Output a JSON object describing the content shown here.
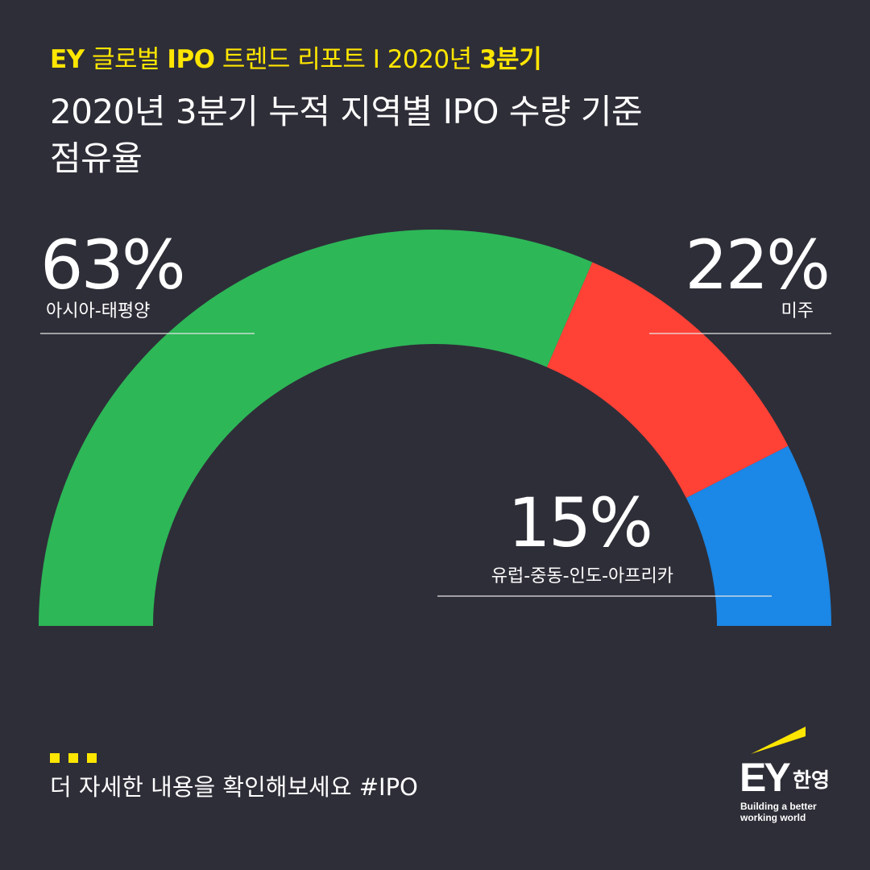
{
  "header": {
    "kicker_brand": "EY",
    "kicker_mid": "글로벌",
    "kicker_ipo": "IPO",
    "kicker_rest": "트렌드 리포트 I 2020년",
    "kicker_q": "3분기",
    "title_line1": "2020년 3분기 누적 지역별 IPO 수량 기준",
    "title_line2": "점유율"
  },
  "chart_data": {
    "type": "pie",
    "variant": "half-donut",
    "categories": [
      "아시아-태평양",
      "미주",
      "유럽-중동-인도-아프리카"
    ],
    "values": [
      63,
      22,
      15
    ],
    "value_labels": [
      "63%",
      "22%",
      "15%"
    ],
    "colors": [
      "#2db757",
      "#ff4136",
      "#1b87e6"
    ]
  },
  "footer": {
    "text": "더 자세한 내용을 확인해보세요 #IPO"
  },
  "logo": {
    "brand": "EY",
    "korean": "한영",
    "tagline_1": "Building a better",
    "tagline_2": "working world",
    "accent": "#ffe600"
  }
}
